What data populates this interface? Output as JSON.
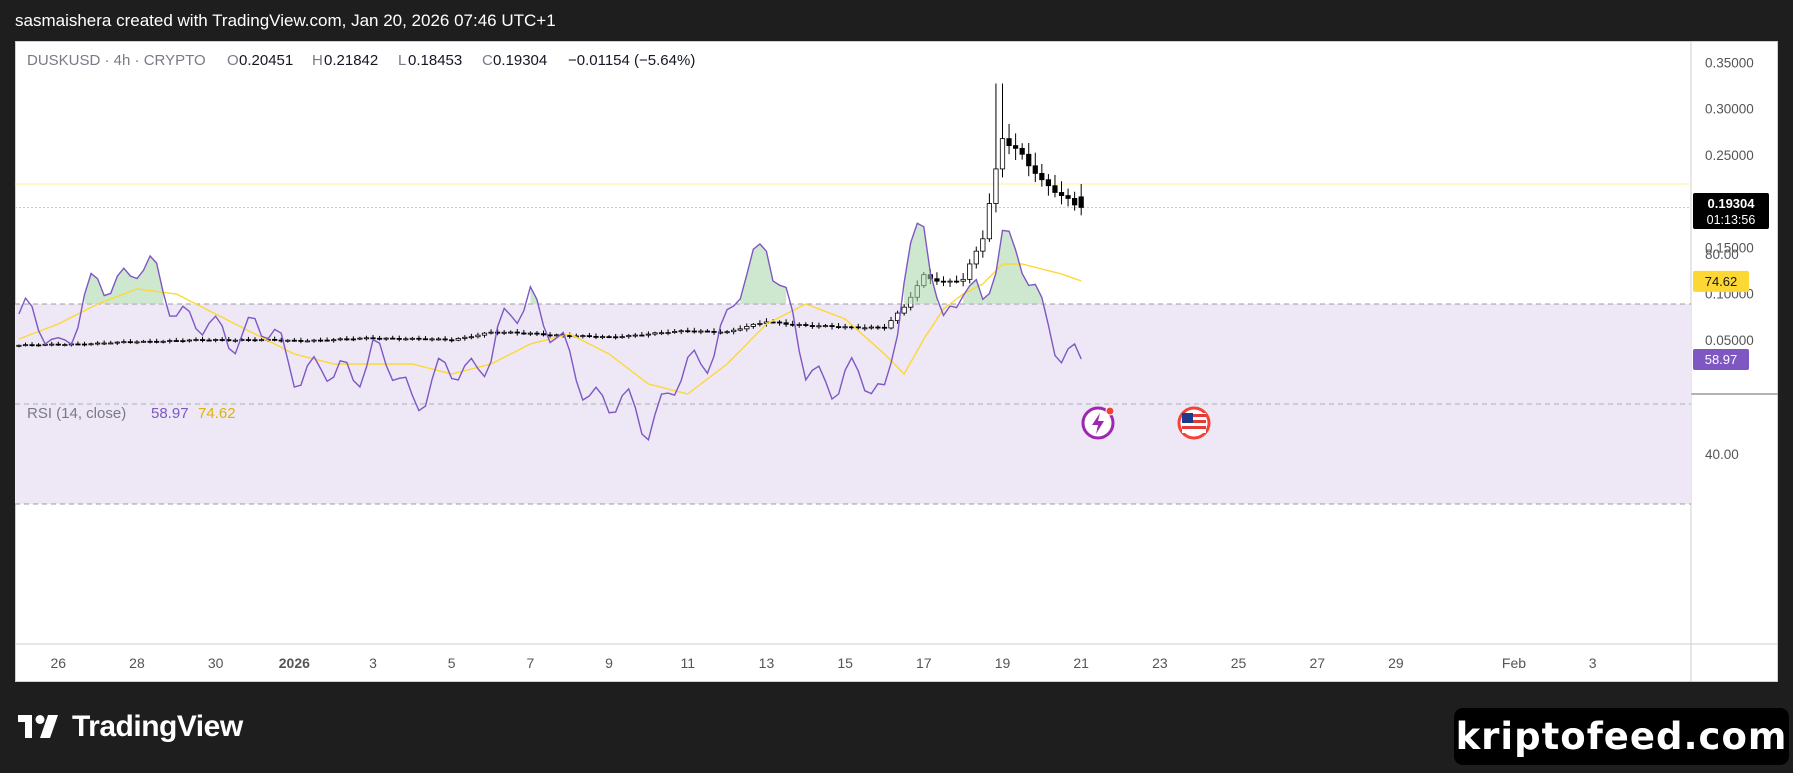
{
  "header": {
    "text": "sasmaishera created with TradingView.com, Jan 20, 2026 07:46 UTC+1"
  },
  "legend": {
    "symbol": "DUSKUSD · 4h · CRYPTO",
    "o_label": "O",
    "o_value": "0.20451",
    "h_label": "H",
    "h_value": "0.21842",
    "l_label": "L",
    "l_value": "0.18453",
    "c_label": "C",
    "c_value": "0.19304",
    "change": "−0.01154 (−5.64%)"
  },
  "price_tag": {
    "price": "0.19304",
    "countdown": "01:13:56"
  },
  "rsi": {
    "title": "RSI (14, close)",
    "value": "58.97",
    "ma_value": "74.62"
  },
  "footer": {
    "brand": "TradingView",
    "site": "kriptofeed.com"
  },
  "icons": {
    "event1": "lightning-icon",
    "event2": "us-flag-icon",
    "logo": "tradingview-logo-icon"
  },
  "colors": {
    "rsi_line": "#7e57c2",
    "rsi_ma": "#fdd835",
    "rsi_band": "#ede7f6",
    "text_grey": "#787b86",
    "price_line": "#fff176"
  },
  "chart_data": [
    {
      "type": "candlestick",
      "title": "DUSKUSD · 4h · CRYPTO",
      "y_ticks": [
        "0.35000",
        "0.30000",
        "0.25000",
        "0.20000",
        "0.15000",
        "0.10000",
        "0.05000"
      ],
      "ylim": [
        0.0,
        0.36
      ],
      "x_ticks": [
        "26",
        "28",
        "30",
        "2026",
        "3",
        "5",
        "7",
        "9",
        "11",
        "13",
        "15",
        "17",
        "19",
        "21",
        "23",
        "25",
        "27",
        "29",
        "Feb",
        "3"
      ],
      "x_days": [
        0,
        2,
        4,
        6,
        8,
        10,
        12,
        14,
        16,
        18,
        20,
        22,
        24,
        26,
        28,
        30,
        32,
        34,
        37,
        39
      ],
      "x_range_days": [
        -1.1,
        41.5
      ],
      "series_daily_close": {
        "x_days": [
          -1,
          0,
          1,
          2,
          3,
          4,
          5,
          6,
          7,
          8,
          9,
          10,
          11,
          12,
          13,
          14,
          15,
          16,
          17,
          18,
          19,
          20,
          21,
          21.5,
          22,
          22.5,
          23,
          23.5,
          24,
          24.5,
          25,
          25.5,
          26
        ],
        "values": [
          0.044,
          0.045,
          0.046,
          0.048,
          0.049,
          0.05,
          0.05,
          0.049,
          0.05,
          0.052,
          0.051,
          0.05,
          0.058,
          0.057,
          0.054,
          0.053,
          0.056,
          0.06,
          0.058,
          0.07,
          0.065,
          0.064,
          0.063,
          0.085,
          0.12,
          0.112,
          0.115,
          0.16,
          0.27,
          0.25,
          0.22,
          0.205,
          0.193
        ]
      },
      "last": {
        "open": 0.20451,
        "high": 0.21842,
        "low": 0.18453,
        "close": 0.19304
      },
      "peak_high": 0.327
    },
    {
      "type": "line",
      "title": "RSI (14, close)",
      "y_ticks": [
        "80.00",
        "40.00"
      ],
      "levels": [
        70,
        50,
        30
      ],
      "series": [
        {
          "name": "RSI",
          "x_days": [
            -1,
            0,
            1,
            2,
            3,
            4,
            5,
            6,
            7,
            8,
            9,
            10,
            11,
            12,
            13,
            14,
            15,
            16,
            17,
            18,
            19,
            20,
            21,
            21.5,
            22,
            22.5,
            23,
            23.5,
            24,
            24.5,
            25,
            25.5,
            26
          ],
          "values": [
            68,
            62,
            73,
            78,
            70,
            63,
            66,
            58,
            55,
            60,
            52,
            56,
            60,
            73,
            57,
            50,
            47,
            56,
            66,
            84,
            56,
            55,
            53,
            75,
            85,
            67,
            74,
            68,
            86,
            78,
            67,
            62,
            59
          ]
        },
        {
          "name": "MA",
          "x_days": [
            -1,
            0,
            1,
            2,
            3,
            4,
            5,
            6,
            7,
            8,
            9,
            10,
            11,
            12,
            13,
            14,
            15,
            16,
            17,
            18,
            19,
            20,
            21,
            21.5,
            22,
            22.5,
            23,
            23.5,
            24,
            24.5,
            25,
            25.5,
            26
          ],
          "values": [
            63,
            66,
            70,
            73,
            72,
            68,
            64,
            60,
            58,
            58,
            58,
            56,
            58,
            62,
            64,
            60,
            54,
            52,
            58,
            66,
            70,
            67,
            60,
            56,
            63,
            69,
            72,
            74,
            78,
            78,
            77,
            76,
            74.62
          ]
        }
      ]
    }
  ]
}
